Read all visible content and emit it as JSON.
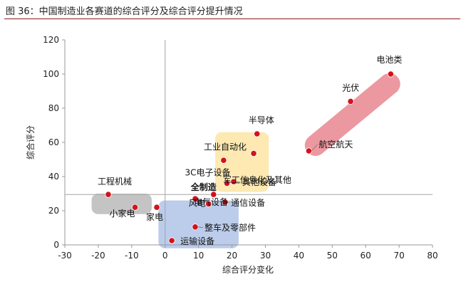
{
  "figure_title": "图 36：中国制造业各赛道的综合评分及综合评分提升情况",
  "chart_data": {
    "type": "scatter",
    "title": "",
    "xlabel": "综合评分变化",
    "ylabel": "综合评分",
    "xlim": [
      -30,
      80
    ],
    "ylim": [
      0,
      120
    ],
    "xticks": [
      -30,
      -20,
      -10,
      0,
      10,
      20,
      30,
      40,
      50,
      60,
      70,
      80
    ],
    "yticks": [
      0,
      20,
      40,
      60,
      80,
      100,
      120
    ],
    "grid": false,
    "legend": "none",
    "points": [
      {
        "label": "电池类",
        "x": 67.5,
        "y": 100
      },
      {
        "label": "光伏",
        "x": 55.5,
        "y": 84
      },
      {
        "label": "航空航天",
        "x": 43,
        "y": 55
      },
      {
        "label": "半导体",
        "x": 27.5,
        "y": 65
      },
      {
        "label": "工业自动化",
        "x": 26.5,
        "y": 53.5
      },
      {
        "label": "军工信息化及其他",
        "x": 17.5,
        "y": 49.5
      },
      {
        "label": "3C电子设备",
        "x": 18.5,
        "y": 36
      },
      {
        "label": "其他设备",
        "x": 20.5,
        "y": 37
      },
      {
        "label": "全制造",
        "x": 14.5,
        "y": 29.5
      },
      {
        "label": "工程机械",
        "x": -17,
        "y": 29.5
      },
      {
        "label": "风电",
        "x": 13,
        "y": 24
      },
      {
        "label": "通信设备",
        "x": 18,
        "y": 25
      },
      {
        "label": "电气设备",
        "x": 9,
        "y": 27
      },
      {
        "label": "小家电",
        "x": -9,
        "y": 22
      },
      {
        "label": "家电",
        "x": -2.5,
        "y": 22
      },
      {
        "label": "整车及零部件",
        "x": 9,
        "y": 10.5
      },
      {
        "label": "运输设备",
        "x": 2,
        "y": 2.5
      }
    ],
    "regions": [
      {
        "color": "#e8828d",
        "x_range": [
          42,
          68
        ],
        "y_range": [
          55,
          100
        ]
      },
      {
        "color": "#fde7a9",
        "x_range": [
          15,
          31
        ],
        "y_range": [
          31,
          66
        ]
      },
      {
        "color": "#a9bee5",
        "x_range": [
          -2,
          22
        ],
        "y_range": [
          -2,
          26
        ]
      },
      {
        "color": "#b4b4b4",
        "x_range": [
          -22,
          -4
        ],
        "y_range": [
          18,
          30
        ]
      }
    ],
    "reference_lines": {
      "horizontal_y": 29.5,
      "vertical_x": 0
    },
    "colors": {
      "point": "#d3121c",
      "point_outline": "#ffffff",
      "reference_line": "#a6a6a6",
      "axis": "#999999"
    }
  }
}
